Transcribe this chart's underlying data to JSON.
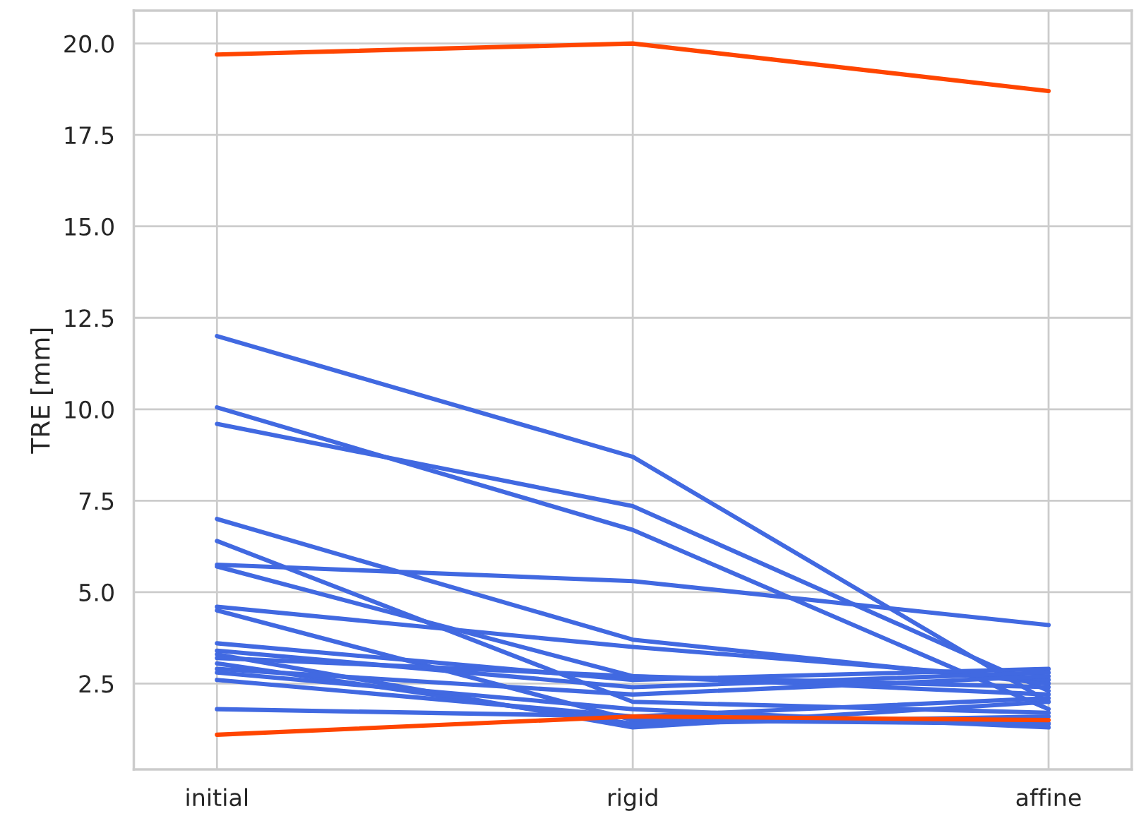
{
  "chart_data": {
    "type": "line",
    "ylabel": "TRE [mm]",
    "categories": [
      "initial",
      "rigid",
      "affine"
    ],
    "ylim": [
      0.15,
      20.9
    ],
    "yticks": [
      {
        "value": 2.5,
        "label": "2.5"
      },
      {
        "value": 5,
        "label": "5.0"
      },
      {
        "value": 7.5,
        "label": "7.5"
      },
      {
        "value": 10,
        "label": "10.0"
      },
      {
        "value": 12.5,
        "label": "12.5"
      },
      {
        "value": 15,
        "label": "15.0"
      },
      {
        "value": 17.5,
        "label": "17.5"
      },
      {
        "value": 20,
        "label": "20.0"
      }
    ],
    "grid": true,
    "legend": false,
    "marker": "none",
    "line_style": "solid",
    "series": [
      {
        "color": "#4169e1",
        "values": [
          12.0,
          8.7,
          2.0
        ]
      },
      {
        "color": "#4169e1",
        "values": [
          10.05,
          6.7,
          1.8
        ]
      },
      {
        "color": "#4169e1",
        "values": [
          9.6,
          7.35,
          2.3
        ]
      },
      {
        "color": "#4169e1",
        "values": [
          7.0,
          3.7,
          2.5
        ]
      },
      {
        "color": "#4169e1",
        "values": [
          6.4,
          2.0,
          1.7
        ]
      },
      {
        "color": "#4169e1",
        "values": [
          5.75,
          5.3,
          4.1
        ]
      },
      {
        "color": "#4169e1",
        "values": [
          5.7,
          2.7,
          2.2
        ]
      },
      {
        "color": "#4169e1",
        "values": [
          4.6,
          3.5,
          2.6
        ]
      },
      {
        "color": "#4169e1",
        "values": [
          4.5,
          1.5,
          1.4
        ]
      },
      {
        "color": "#4169e1",
        "values": [
          3.6,
          2.6,
          2.9
        ]
      },
      {
        "color": "#4169e1",
        "values": [
          3.4,
          2.4,
          2.8
        ]
      },
      {
        "color": "#4169e1",
        "values": [
          3.3,
          1.3,
          2.0
        ]
      },
      {
        "color": "#4169e1",
        "values": [
          3.2,
          2.7,
          2.4
        ]
      },
      {
        "color": "#4169e1",
        "values": [
          3.05,
          1.4,
          1.6
        ]
      },
      {
        "color": "#4169e1",
        "values": [
          2.9,
          2.2,
          2.7
        ]
      },
      {
        "color": "#4169e1",
        "values": [
          2.8,
          1.8,
          1.3
        ]
      },
      {
        "color": "#4169e1",
        "values": [
          2.6,
          1.6,
          2.1
        ]
      },
      {
        "color": "#4169e1",
        "values": [
          1.8,
          1.6,
          1.4
        ]
      },
      {
        "color": "#ff4500",
        "values": [
          19.7,
          20.0,
          18.7
        ]
      },
      {
        "color": "#ff4500",
        "values": [
          1.1,
          1.6,
          1.5
        ]
      }
    ]
  }
}
